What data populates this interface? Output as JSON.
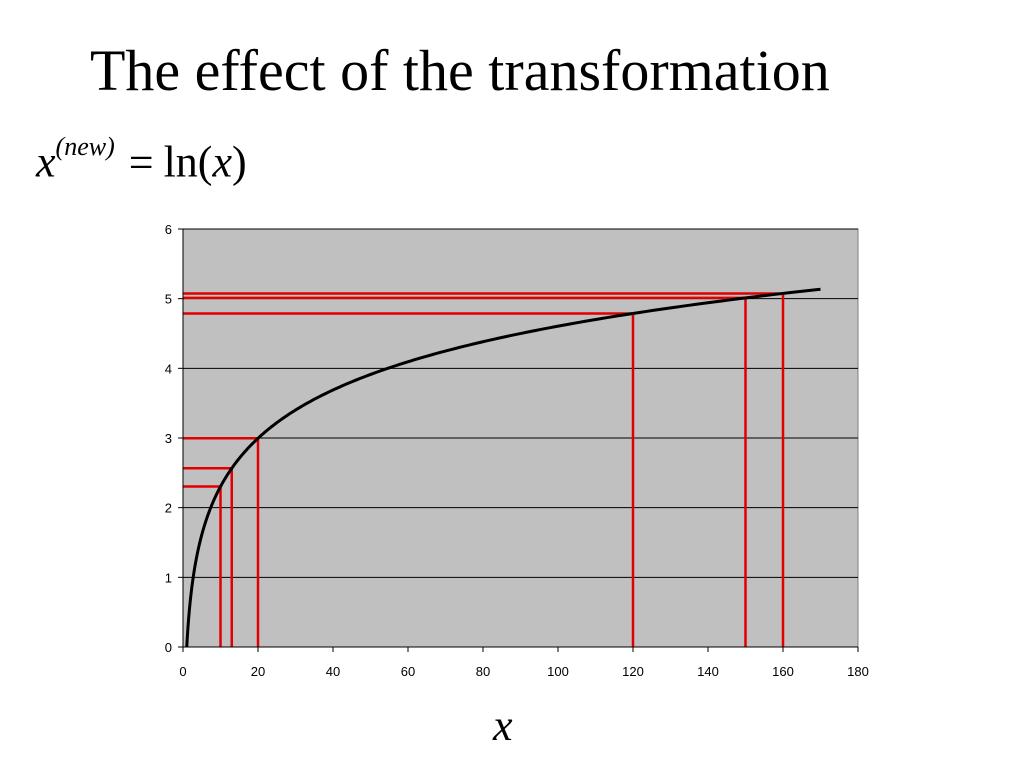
{
  "slide": {
    "title": "The effect of the transformation",
    "formula": {
      "lhs_var": "x",
      "lhs_sup": "(new)",
      "equals": "=",
      "func": "ln(",
      "arg": "x",
      "close": ")"
    }
  },
  "chart_data": {
    "type": "line",
    "xlabel": "x",
    "ylabel": "",
    "xlim": [
      0,
      180
    ],
    "ylim": [
      0,
      6
    ],
    "xticks": [
      "0",
      "20",
      "40",
      "60",
      "80",
      "100",
      "120",
      "140",
      "160",
      "180"
    ],
    "yticks": [
      "0",
      "1",
      "2",
      "3",
      "4",
      "5",
      "6"
    ],
    "grid": "horizontal",
    "plot_background": "#c0c0c0",
    "series": [
      {
        "function": "ln(x)",
        "color": "#000000",
        "x": [
          1,
          2,
          3,
          5,
          7.5,
          10,
          13,
          20,
          30,
          40,
          50,
          60,
          80,
          100,
          120,
          150,
          170
        ],
        "y": [
          0,
          0.693,
          1.099,
          1.609,
          2.015,
          2.303,
          2.565,
          2.996,
          3.401,
          3.689,
          3.912,
          4.094,
          4.382,
          4.605,
          4.787,
          5.011,
          5.136
        ]
      }
    ],
    "reference_lines": {
      "color": "#e00000",
      "points": [
        {
          "x": 10,
          "y": 2.303
        },
        {
          "x": 13,
          "y": 2.565
        },
        {
          "x": 20,
          "y": 2.996
        },
        {
          "x": 120,
          "y": 4.787
        },
        {
          "x": 150,
          "y": 5.011
        },
        {
          "x": 160,
          "y": 5.075
        }
      ]
    }
  }
}
